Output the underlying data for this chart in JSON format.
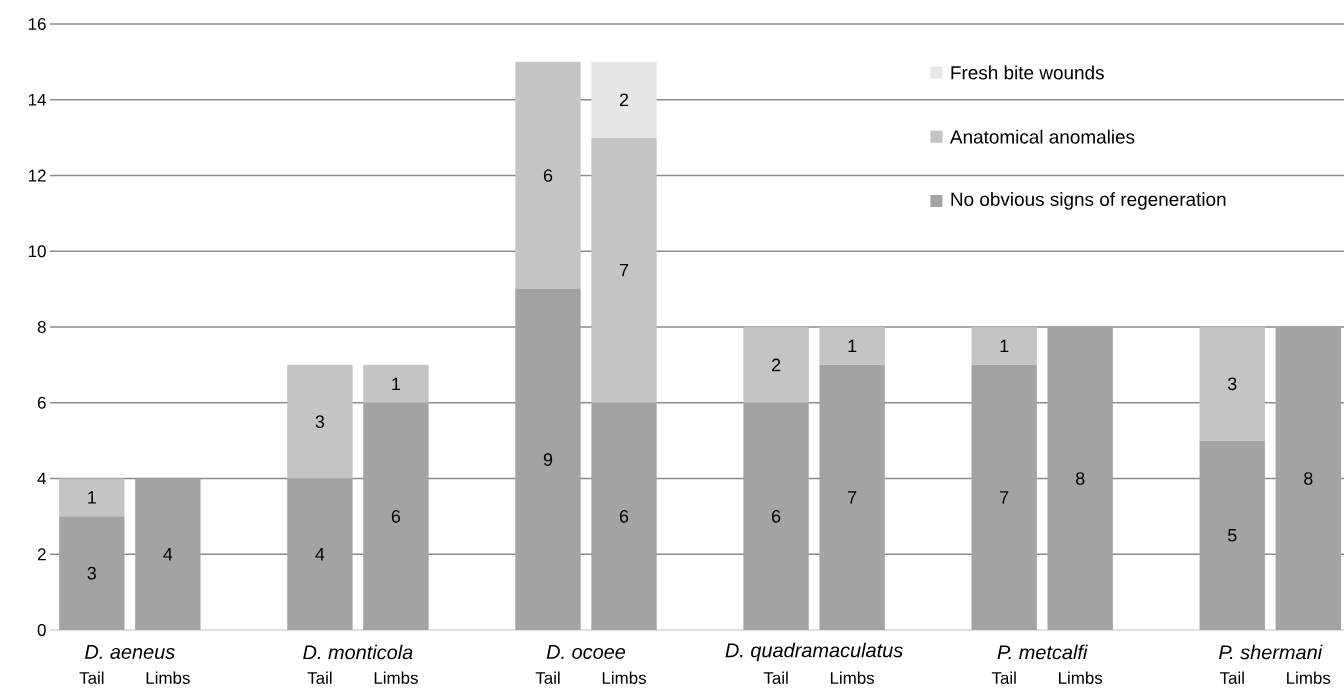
{
  "chart_data": {
    "type": "bar",
    "stacked": true,
    "categories": [
      "Tail",
      "Limbs",
      "Tail",
      "Limbs",
      "Tail",
      "Limbs",
      "Tail",
      "Limbs",
      "Tail",
      "Limbs",
      "Tail",
      "Limbs"
    ],
    "series": [
      {
        "name": "No obvious signs of regeneration",
        "color": "#a3a3a3",
        "values": [
          3,
          4,
          4,
          6,
          9,
          6,
          6,
          7,
          7,
          8,
          5,
          8
        ]
      },
      {
        "name": "Anatomical anomalies",
        "color": "#c4c4c4",
        "values": [
          1,
          null,
          3,
          1,
          6,
          7,
          2,
          1,
          1,
          null,
          3,
          null
        ]
      },
      {
        "name": "Fresh bite wounds",
        "color": "#e6e6e6",
        "values": [
          null,
          null,
          null,
          null,
          null,
          2,
          null,
          null,
          null,
          null,
          null,
          null
        ]
      }
    ],
    "annotations": [
      "D. aeneus",
      "D. monticola",
      "D. ocoee",
      "D. quadramaculatus",
      "P. metcalfi",
      "P. shermani"
    ],
    "ylim": [
      0,
      16
    ],
    "yticks": [
      0,
      2,
      4,
      6,
      8,
      10,
      12,
      14,
      16
    ],
    "grid": "y",
    "legend": "top right",
    "data_labels": true
  }
}
